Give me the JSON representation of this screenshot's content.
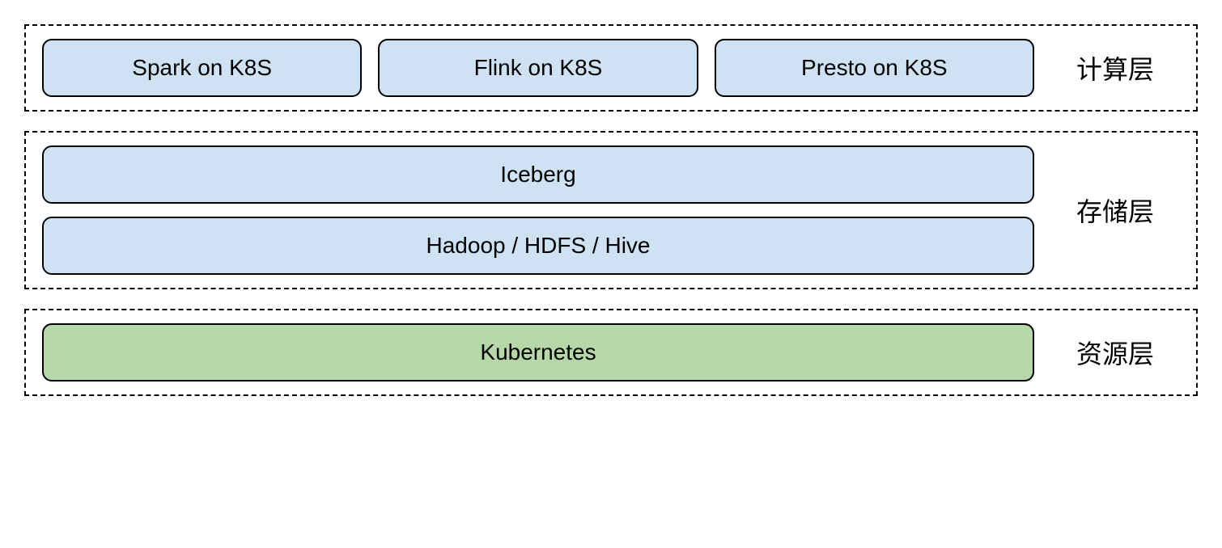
{
  "diagram": {
    "type": "layered-architecture",
    "background_color": "#ffffff",
    "layer_border_style": "dashed",
    "layer_border_color": "#000000",
    "layer_border_width": 2,
    "box_border_color": "#000000",
    "box_border_width": 2,
    "box_border_radius": 12,
    "label_fontsize": 32,
    "box_fontsize": 28,
    "text_color": "#000000",
    "colors": {
      "blue_fill": "#cfe2f3",
      "green_fill": "#b6d7a8"
    },
    "layers": [
      {
        "id": "compute",
        "label": "计算层",
        "layout": "row",
        "boxes": [
          {
            "label": "Spark on K8S",
            "fill": "#cfe2f3"
          },
          {
            "label": "Flink on K8S",
            "fill": "#cfe2f3"
          },
          {
            "label": "Presto on K8S",
            "fill": "#cfe2f3"
          }
        ]
      },
      {
        "id": "storage",
        "label": "存储层",
        "layout": "column",
        "boxes": [
          {
            "label": "Iceberg",
            "fill": "#cfe2f3"
          },
          {
            "label": "Hadoop / HDFS / Hive",
            "fill": "#cfe2f3"
          }
        ]
      },
      {
        "id": "resource",
        "label": "资源层",
        "layout": "row",
        "boxes": [
          {
            "label": "Kubernetes",
            "fill": "#b6d7a8"
          }
        ]
      }
    ]
  }
}
